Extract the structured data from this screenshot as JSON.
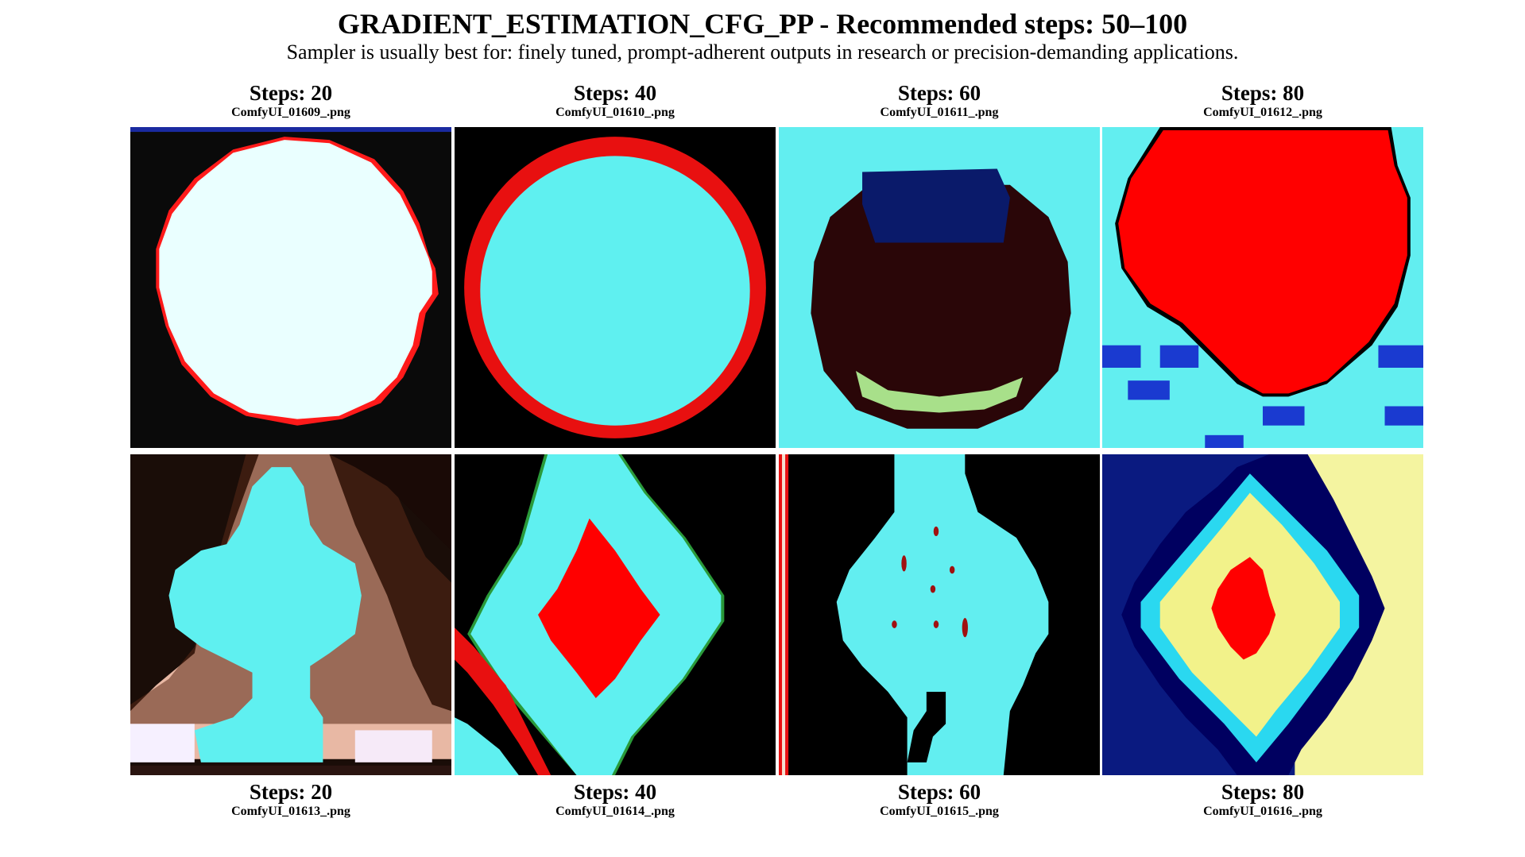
{
  "header": {
    "title": "GRADIENT_ESTIMATION_CFG_PP - Recommended steps: 50–100",
    "subtitle": "Sampler is usually best for: finely tuned, prompt-adherent outputs in research or precision-demanding applications."
  },
  "grid": {
    "top_row": [
      {
        "steps": "Steps: 20",
        "file": "ComfyUI_01609_.png"
      },
      {
        "steps": "Steps: 40",
        "file": "ComfyUI_01610_.png"
      },
      {
        "steps": "Steps: 60",
        "file": "ComfyUI_01611_.png"
      },
      {
        "steps": "Steps: 80",
        "file": "ComfyUI_01612_.png"
      }
    ],
    "bottom_row": [
      {
        "steps": "Steps: 20",
        "file": "ComfyUI_01613_.png"
      },
      {
        "steps": "Steps: 40",
        "file": "ComfyUI_01614_.png"
      },
      {
        "steps": "Steps: 60",
        "file": "ComfyUI_01615_.png"
      },
      {
        "steps": "Steps: 80",
        "file": "ComfyUI_01616_.png"
      }
    ]
  },
  "colors": {
    "cyan": "#5ff0f0",
    "red": "#ff0000",
    "black": "#000000",
    "navy": "#0a1a80",
    "dark_maroon": "#2a0608",
    "yellow": "#f2f28a"
  }
}
